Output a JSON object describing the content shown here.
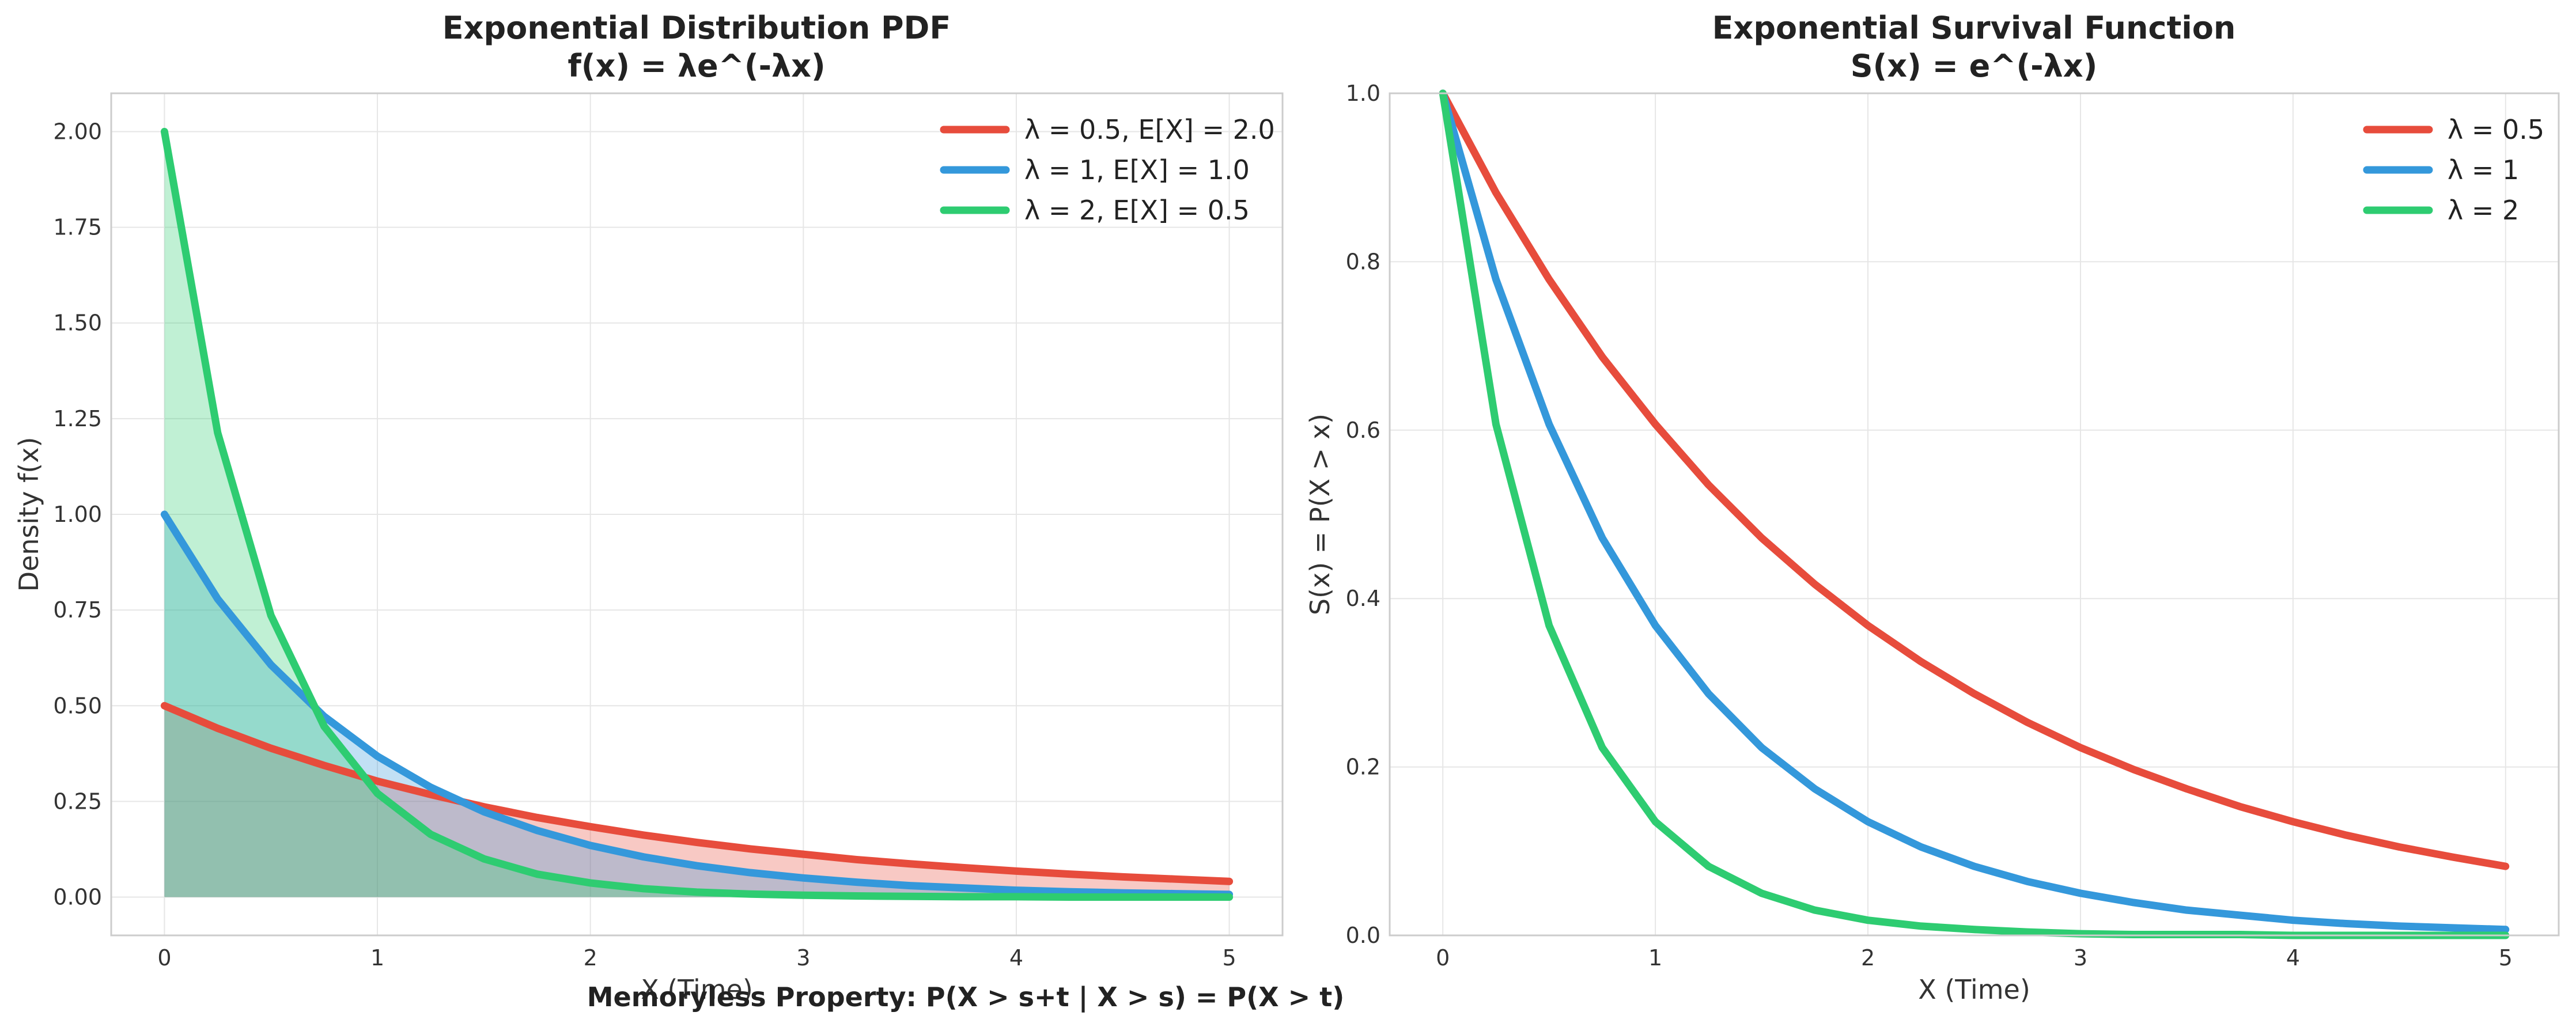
{
  "figure": {
    "suptitle": "Memoryless Property: P(X > s+t | X > s) = P(X > t)"
  },
  "chart_data": [
    {
      "type": "line",
      "title": "Exponential Distribution PDF",
      "subtitle": "f(x) = λe^(-λx)",
      "xlabel": "X (Time)",
      "ylabel": "Density f(x)",
      "xlim": [
        -0.25,
        5.25
      ],
      "ylim": [
        -0.1,
        2.1
      ],
      "xticks": [
        0,
        1,
        2,
        3,
        4,
        5
      ],
      "yticks": [
        0.0,
        0.25,
        0.5,
        0.75,
        1.0,
        1.25,
        1.5,
        1.75,
        2.0
      ],
      "ytick_labels": [
        "0.00",
        "0.25",
        "0.50",
        "0.75",
        "1.00",
        "1.25",
        "1.50",
        "1.75",
        "2.00"
      ],
      "grid": true,
      "filled": true,
      "legend": "top-right",
      "x": [
        0,
        0.25,
        0.5,
        0.75,
        1,
        1.25,
        1.5,
        1.75,
        2,
        2.25,
        2.5,
        2.75,
        3,
        3.25,
        3.5,
        3.75,
        4,
        4.25,
        4.5,
        4.75,
        5
      ],
      "series": [
        {
          "name": "λ = 0.5, E[X] = 2.0",
          "color": "#e74c3c",
          "values": [
            0.5,
            0.441,
            0.389,
            0.344,
            0.303,
            0.268,
            0.236,
            0.208,
            0.184,
            0.162,
            0.143,
            0.126,
            0.112,
            0.098,
            0.087,
            0.077,
            0.068,
            0.06,
            0.053,
            0.047,
            0.041
          ]
        },
        {
          "name": "λ = 1, E[X] = 1.0",
          "color": "#3498db",
          "values": [
            1.0,
            0.779,
            0.607,
            0.472,
            0.368,
            0.287,
            0.223,
            0.174,
            0.135,
            0.105,
            0.082,
            0.064,
            0.05,
            0.039,
            0.03,
            0.024,
            0.018,
            0.014,
            0.011,
            0.009,
            0.007
          ]
        },
        {
          "name": "λ = 2, E[X] = 0.5",
          "color": "#2ecc71",
          "values": [
            2.0,
            1.213,
            0.736,
            0.446,
            0.271,
            0.164,
            0.1,
            0.06,
            0.037,
            0.022,
            0.013,
            0.008,
            0.005,
            0.003,
            0.002,
            0.001,
            0.001,
            0.0,
            0.0,
            0.0,
            0.0
          ]
        }
      ]
    },
    {
      "type": "line",
      "title": "Exponential Survival Function",
      "subtitle": "S(x) = e^(-λx)",
      "xlabel": "X (Time)",
      "ylabel": "S(x) = P(X > x)",
      "xlim": [
        -0.25,
        5.25
      ],
      "ylim": [
        0,
        1
      ],
      "xticks": [
        0,
        1,
        2,
        3,
        4,
        5
      ],
      "yticks": [
        0.0,
        0.2,
        0.4,
        0.6,
        0.8,
        1.0
      ],
      "ytick_labels": [
        "0.0",
        "0.2",
        "0.4",
        "0.6",
        "0.8",
        "1.0"
      ],
      "grid": true,
      "filled": false,
      "legend": "top-right",
      "x": [
        0,
        0.25,
        0.5,
        0.75,
        1,
        1.25,
        1.5,
        1.75,
        2,
        2.25,
        2.5,
        2.75,
        3,
        3.25,
        3.5,
        3.75,
        4,
        4.25,
        4.5,
        4.75,
        5
      ],
      "series": [
        {
          "name": "λ = 0.5",
          "color": "#e74c3c",
          "values": [
            1.0,
            0.882,
            0.779,
            0.687,
            0.607,
            0.535,
            0.472,
            0.417,
            0.368,
            0.325,
            0.287,
            0.253,
            0.223,
            0.197,
            0.174,
            0.153,
            0.135,
            0.119,
            0.105,
            0.093,
            0.082
          ]
        },
        {
          "name": "λ = 1",
          "color": "#3498db",
          "values": [
            1.0,
            0.779,
            0.607,
            0.472,
            0.368,
            0.287,
            0.223,
            0.174,
            0.135,
            0.105,
            0.082,
            0.064,
            0.05,
            0.039,
            0.03,
            0.024,
            0.018,
            0.014,
            0.011,
            0.009,
            0.007
          ]
        },
        {
          "name": "λ = 2",
          "color": "#2ecc71",
          "values": [
            1.0,
            0.607,
            0.368,
            0.223,
            0.135,
            0.082,
            0.05,
            0.03,
            0.018,
            0.011,
            0.007,
            0.004,
            0.002,
            0.001,
            0.001,
            0.001,
            0.0,
            0.0,
            0.0,
            0.0,
            0.0
          ]
        }
      ]
    }
  ]
}
